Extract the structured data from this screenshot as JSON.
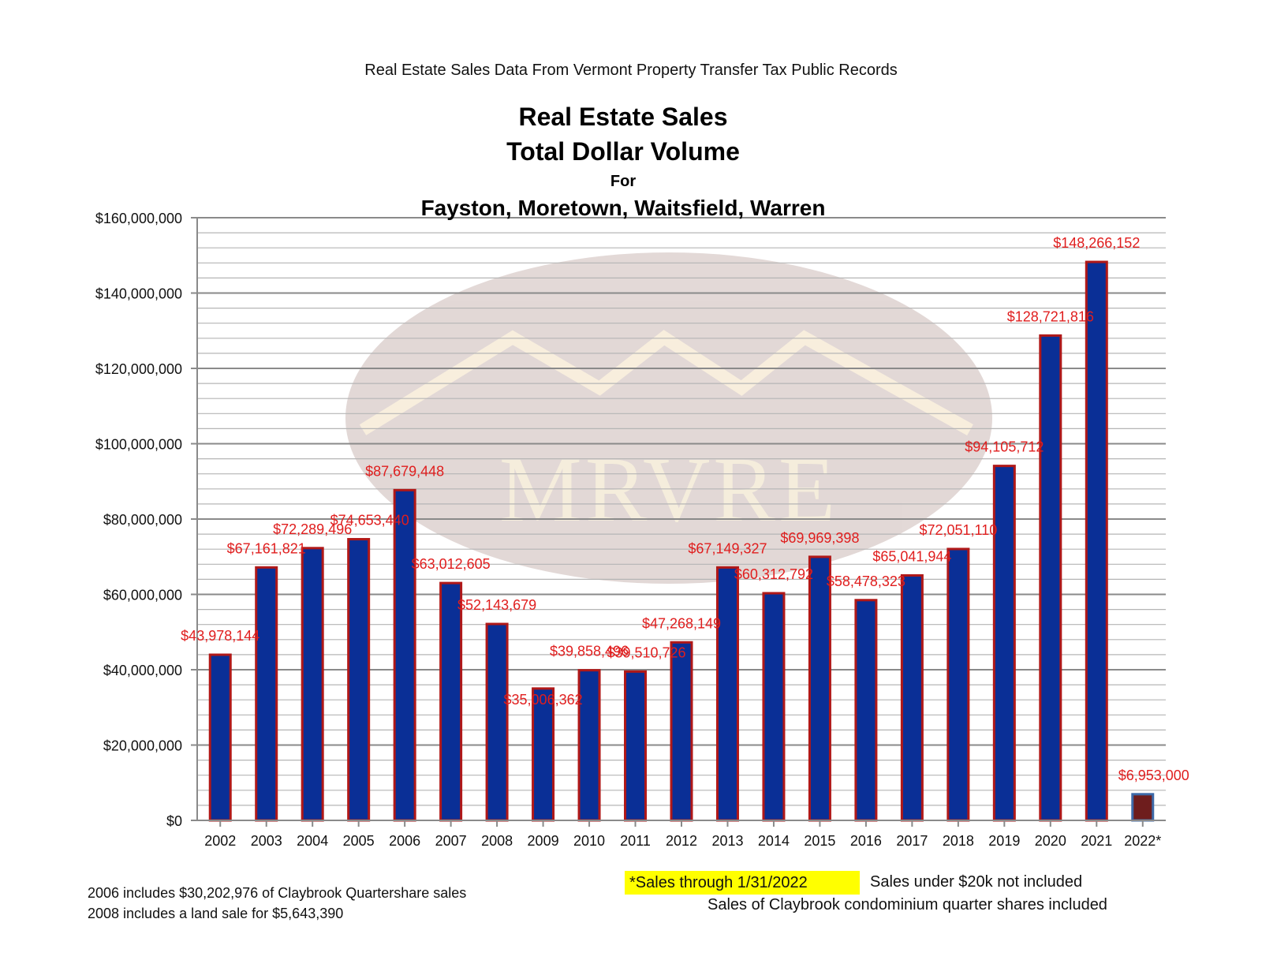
{
  "header": {
    "source": "Real Estate Sales Data From Vermont Property Transfer Tax Public Records",
    "title_line1": "Real Estate Sales",
    "title_line2": "Total Dollar Volume",
    "title_line3": "For",
    "title_line4": "Fayston, Moretown, Waitsfield, Warren"
  },
  "watermark": {
    "text": "MRVRE"
  },
  "chart_data": {
    "type": "bar",
    "categories": [
      "2002",
      "2003",
      "2004",
      "2005",
      "2006",
      "2007",
      "2008",
      "2009",
      "2010",
      "2011",
      "2012",
      "2013",
      "2014",
      "2015",
      "2016",
      "2017",
      "2018",
      "2019",
      "2020",
      "2021",
      "2022*"
    ],
    "values": [
      43978144,
      67161821,
      72289496,
      74653440,
      87679448,
      63012605,
      52143679,
      35006362,
      39858496,
      39510726,
      47268149,
      67149327,
      60312792,
      69969398,
      58478323,
      65041944,
      72051110,
      94105712,
      128721816,
      148266152,
      6953000
    ],
    "data_labels": [
      "$43,978,144",
      "$67,161,821",
      "$72,289,496",
      "$74,653,440",
      "$87,679,448",
      "$63,012,605",
      "$52,143,679",
      "$35,006,362",
      "$39,858,496",
      "$39,510,726",
      "$47,268,149",
      "$67,149,327",
      "$60,312,792",
      "$69,969,398",
      "$58,478,323",
      "$65,041,944",
      "$72,051,110",
      "$94,105,712",
      "$128,721,816",
      "$148,266,152",
      "$6,953,000"
    ],
    "y_ticks": [
      "$0",
      "$20,000,000",
      "$40,000,000",
      "$60,000,000",
      "$80,000,000",
      "$100,000,000",
      "$120,000,000",
      "$140,000,000",
      "$160,000,000"
    ],
    "ylim": [
      0,
      160000000
    ],
    "minor_gridlines_per_major": 5,
    "grid": true,
    "colors": {
      "bar_fill": "#0a2f96",
      "bar_border": "#b01818",
      "last_bar_fill": "#6e1d1d",
      "last_bar_border": "#3d6aa8",
      "label_color": "#e01e1e",
      "major_grid": "#8a8a8a",
      "minor_grid": "#b5b5b5"
    }
  },
  "notes": {
    "claybrook_2006": "2006 includes $30,202,976 of Claybrook Quartershare sales",
    "land_2008": "2008 includes a land sale for $5,643,390",
    "through_date": "*Sales through 1/31/2022",
    "under_20k": "Sales under $20k not included",
    "condo_shares": "Sales of Claybrook condominium quarter shares included"
  }
}
